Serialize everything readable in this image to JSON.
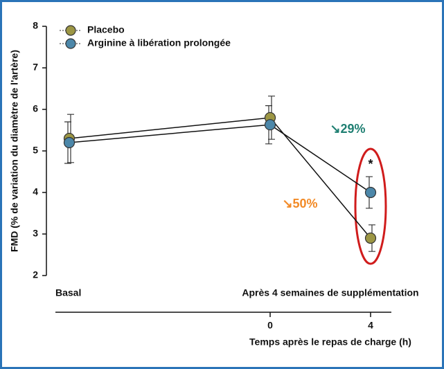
{
  "chart_data": {
    "type": "line",
    "ylabel": "FMD (% de variation du diamètre de l'artère)",
    "xlabel": "Temps après le repas de charge (h)",
    "group_labels": [
      "Basal",
      "Après 4 semaines de supplémentation"
    ],
    "categories": [
      null,
      "0",
      "4"
    ],
    "ylim": [
      2,
      8
    ],
    "yticks": [
      2,
      3,
      4,
      5,
      6,
      7,
      8
    ],
    "legend": "upper left",
    "series": [
      {
        "name": "Placebo",
        "color": "#9c9644",
        "values": [
          5.3,
          5.8,
          2.9
        ],
        "errors": [
          0.58,
          0.52,
          0.32
        ]
      },
      {
        "name": "Arginine à libération prolongée",
        "color": "#4c87a9",
        "values": [
          5.2,
          5.63,
          4.0
        ],
        "errors": [
          0.5,
          0.46,
          0.38
        ]
      }
    ],
    "annotations": [
      {
        "text": "↘29%",
        "color": "#1f7f72"
      },
      {
        "text": "↘50%",
        "color": "#f28a26"
      },
      {
        "text": "*",
        "color": "#111111"
      }
    ]
  }
}
